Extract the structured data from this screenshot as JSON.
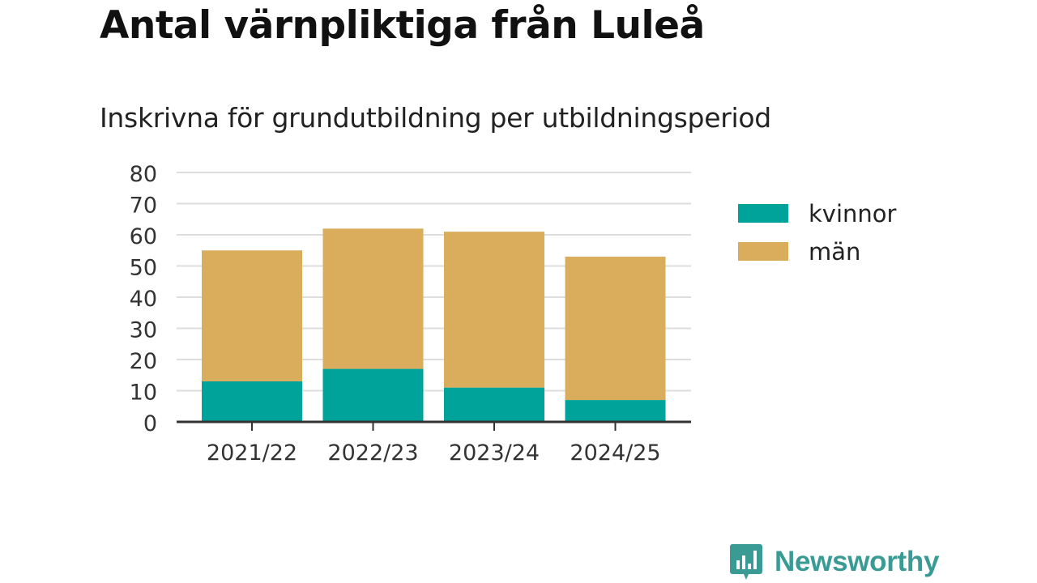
{
  "title": "Antal värnpliktiga från Luleå",
  "subtitle": "Inskrivna för grundutbildning per utbildningsperiod",
  "brand": "Newsworthy",
  "colors": {
    "kvinnor": "#00a39a",
    "man": "#d9ad5b",
    "grid": "#dddddd",
    "axis": "#333333",
    "brand": "#3a9b95"
  },
  "legend": [
    {
      "label": "kvinnor",
      "color": "#00a39a"
    },
    {
      "label": "män",
      "color": "#d9ad5b"
    }
  ],
  "chart_data": {
    "type": "bar",
    "stacked": true,
    "categories": [
      "2021/22",
      "2022/23",
      "2023/24",
      "2024/25"
    ],
    "series": [
      {
        "name": "kvinnor",
        "values": [
          13,
          17,
          11,
          7
        ]
      },
      {
        "name": "män",
        "values": [
          42,
          45,
          50,
          46
        ]
      }
    ],
    "ylim": [
      0,
      80
    ],
    "yticks": [
      0,
      10,
      20,
      30,
      40,
      50,
      60,
      70,
      80
    ],
    "grid": true,
    "legend_position": "right"
  }
}
